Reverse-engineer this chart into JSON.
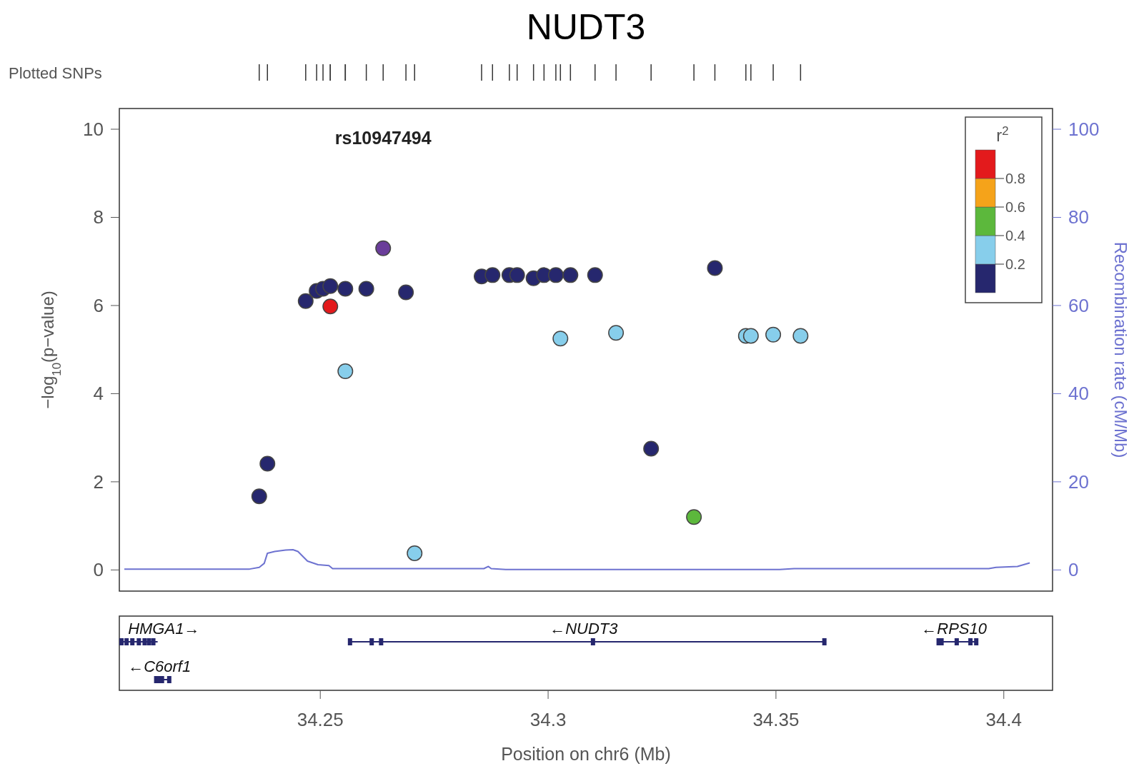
{
  "chart_data": {
    "type": "scatter",
    "title": "NUDT3",
    "xlabel": "Position on chr6 (Mb)",
    "ylabel": "−log$_{10}$(p−value)",
    "y2label": "Recombination rate (cM/Mb)",
    "clabel": "r$^{2}$",
    "xlim": [
      34.2059,
      34.4107
    ],
    "xticks": [
      34.25,
      34.3,
      34.35,
      34.4
    ],
    "ylim": [
      -0.48,
      10.47
    ],
    "yticks": [
      0,
      2,
      4,
      6,
      8,
      10
    ],
    "y2lim": [
      -4.8,
      104.7
    ],
    "y2ticks": [
      0,
      20,
      40,
      60,
      80,
      100
    ],
    "marker": "circle",
    "grid": false,
    "annotations": [
      "Plotted SNPs",
      "HMGA1→",
      "←NUDT3",
      "←RPS10",
      "←C6orf1",
      "0.8",
      "0.6",
      "0.4",
      "0.2"
    ],
    "series": [
      {
        "type": "scatter",
        "x": [
          34.2366,
          34.2384,
          34.2468,
          34.2492,
          34.2506,
          34.2522,
          34.2522,
          34.2555,
          34.2555,
          34.2601,
          34.2688,
          34.2707,
          34.2854,
          34.2878,
          34.2915,
          34.2932,
          34.2968,
          34.2991,
          34.3017,
          34.3049,
          34.3103,
          34.3027,
          34.3149,
          34.3226,
          34.332,
          34.3366,
          34.3434,
          34.3445,
          34.3494,
          34.3554
        ],
        "values": [
          1.67,
          2.41,
          6.1,
          6.33,
          6.38,
          6.44,
          5.98,
          6.38,
          4.51,
          6.38,
          6.3,
          0.38,
          6.66,
          6.69,
          6.69,
          6.69,
          6.62,
          6.69,
          6.69,
          6.69,
          6.69,
          5.25,
          5.38,
          2.75,
          1.2,
          6.85,
          5.31,
          5.31,
          5.34,
          5.31
        ],
        "colors": [
          "#26276e",
          "#26276e",
          "#26276e",
          "#26276e",
          "#26276e",
          "#26276e",
          "#e31a1c",
          "#26276e",
          "#87ceeb",
          "#26276e",
          "#26276e",
          "#87ceeb",
          "#26276e",
          "#26276e",
          "#26276e",
          "#26276e",
          "#26276e",
          "#26276e",
          "#26276e",
          "#26276e",
          "#26276e",
          "#87ceeb",
          "#87ceeb",
          "#26276e",
          "#5cb83c",
          "#26276e",
          "#87ceeb",
          "#87ceeb",
          "#87ceeb",
          "#87ceeb"
        ]
      },
      {
        "type": "scatter",
        "name": "rs10947494",
        "color": "#6a3d9a",
        "x": [
          34.2638
        ],
        "values": [
          7.3
        ]
      },
      {
        "type": "line",
        "marker": "none",
        "axis": "y2",
        "color": "#6d72d0",
        "x": [
          34.207,
          34.2345,
          34.2366,
          34.2377,
          34.2384,
          34.24,
          34.2424,
          34.244,
          34.2451,
          34.2472,
          34.2495,
          34.2519,
          34.2527,
          34.2859,
          34.2869,
          34.2875,
          34.2907,
          34.3508,
          34.354,
          34.3967,
          34.3983,
          34.403,
          34.4057
        ],
        "values": [
          0.2,
          0.2,
          0.6,
          1.5,
          3.8,
          4.2,
          4.5,
          4.6,
          4.2,
          2.0,
          1.2,
          1.0,
          0.3,
          0.3,
          0.8,
          0.3,
          0.1,
          0.1,
          0.3,
          0.3,
          0.6,
          0.8,
          1.6
        ]
      }
    ]
  }
}
